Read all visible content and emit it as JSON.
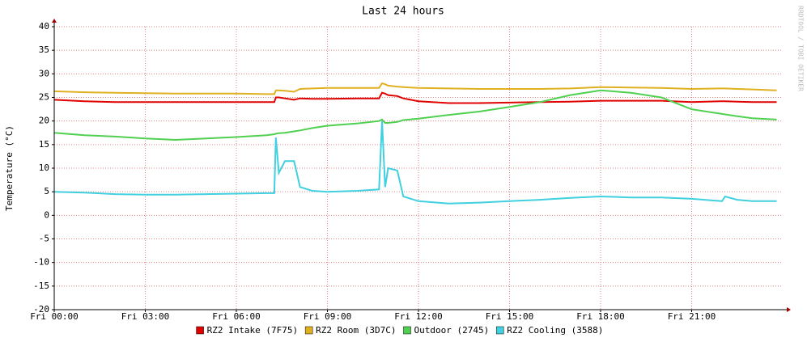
{
  "chart_data": {
    "type": "line",
    "title": "Last 24 hours",
    "y_label": "Temperature (°C)",
    "watermark": "RRDTOOL / TOBI OETIKER",
    "x": [
      0,
      1,
      2,
      3,
      4,
      5,
      6,
      7,
      7.25,
      7.3,
      7.4,
      7.6,
      7.9,
      8.1,
      8.5,
      9,
      10,
      10.7,
      10.8,
      10.9,
      11,
      11.3,
      11.5,
      12,
      13,
      14,
      15,
      16,
      17,
      18,
      19,
      20,
      21,
      22,
      22.1,
      22.5,
      23,
      23.8
    ],
    "xlim": [
      0,
      24
    ],
    "xticks": [
      {
        "value": 0,
        "label": "Fri 00:00"
      },
      {
        "value": 3,
        "label": "Fri 03:00"
      },
      {
        "value": 6,
        "label": "Fri 06:00"
      },
      {
        "value": 9,
        "label": "Fri 09:00"
      },
      {
        "value": 12,
        "label": "Fri 12:00"
      },
      {
        "value": 15,
        "label": "Fri 15:00"
      },
      {
        "value": 18,
        "label": "Fri 18:00"
      },
      {
        "value": 21,
        "label": "Fri 21:00"
      }
    ],
    "ylim": [
      -20,
      40
    ],
    "yticks": [
      -20,
      -15,
      -10,
      -5,
      0,
      5,
      10,
      15,
      20,
      25,
      30,
      35,
      40
    ],
    "grid": true,
    "series": [
      {
        "name": "RZ2 Intake (7F75)",
        "color": "#e00000",
        "values": [
          24.5,
          24.2,
          24,
          24,
          24,
          24,
          24,
          24,
          24,
          25,
          25,
          24.8,
          24.5,
          24.8,
          24.7,
          24.7,
          24.8,
          24.8,
          26,
          25.8,
          25.5,
          25.3,
          24.8,
          24.2,
          23.8,
          23.8,
          23.9,
          24,
          24.1,
          24.3,
          24.3,
          24.3,
          24,
          24.2,
          24.2,
          24.1,
          24,
          24
        ]
      },
      {
        "name": "RZ2 Room (3D7C)",
        "color": "#e0b020",
        "values": [
          26.3,
          26.1,
          26,
          25.9,
          25.8,
          25.8,
          25.8,
          25.7,
          25.7,
          26.5,
          26.5,
          26.4,
          26.2,
          26.8,
          26.9,
          27,
          27,
          27,
          28,
          27.8,
          27.5,
          27.3,
          27.2,
          27,
          26.9,
          26.8,
          26.8,
          26.8,
          26.9,
          27.2,
          27.1,
          27,
          26.8,
          26.9,
          26.9,
          26.8,
          26.7,
          26.5
        ]
      },
      {
        "name": "Outdoor (2745)",
        "color": "#50d050",
        "values": [
          17.5,
          17,
          16.7,
          16.3,
          16,
          16.3,
          16.6,
          17,
          17.2,
          17.3,
          17.4,
          17.5,
          17.8,
          18,
          18.5,
          19,
          19.5,
          20,
          20.3,
          19.6,
          19.6,
          19.8,
          20.2,
          20.5,
          21.3,
          22,
          23,
          24,
          25.5,
          26.5,
          26,
          25,
          22.5,
          21.5,
          21.4,
          21,
          20.6,
          20.3
        ]
      },
      {
        "name": "RZ2 Cooling (3588)",
        "color": "#40d0e0",
        "values": [
          5,
          4.8,
          4.5,
          4.4,
          4.4,
          4.5,
          4.6,
          4.7,
          4.7,
          16.5,
          9,
          11.5,
          11.5,
          6,
          5.2,
          5,
          5.2,
          5.5,
          20,
          6,
          10,
          9.5,
          4,
          3,
          2.5,
          2.7,
          3,
          3.3,
          3.7,
          4,
          3.8,
          3.8,
          3.5,
          3,
          4,
          3.3,
          3,
          3
        ]
      }
    ]
  }
}
